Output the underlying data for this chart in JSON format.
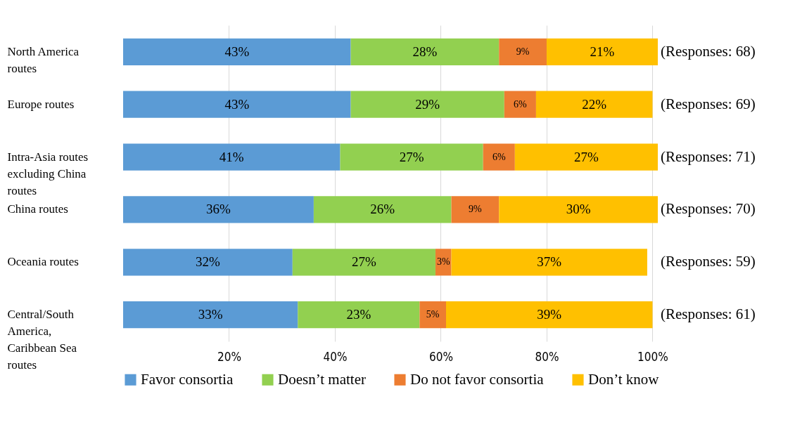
{
  "chart_data": {
    "type": "bar",
    "orientation": "horizontal",
    "stacked": true,
    "grid": "x",
    "legend": "bottom",
    "categories": [
      "North America routes",
      "Europe routes",
      "Intra-Asia routes excluding China routes",
      "China routes",
      "Oceania routes",
      "Central/South America, Caribbean Sea routes"
    ],
    "series": [
      {
        "name": "Favor consortia",
        "color": "#5b9bd5",
        "values": [
          43,
          43,
          41,
          36,
          32,
          33
        ],
        "value_labels": [
          "43%",
          "43%",
          "41%",
          "36%",
          "32%",
          "33%"
        ]
      },
      {
        "name": "Doesn’t matter",
        "color": "#92d050",
        "values": [
          28,
          29,
          27,
          26,
          27,
          23
        ],
        "value_labels": [
          "28%",
          "29%",
          "27%",
          "26%",
          "27%",
          "23%"
        ]
      },
      {
        "name": "Do not favor consortia",
        "color": "#ed7d31",
        "values": [
          9,
          6,
          6,
          9,
          3,
          5
        ],
        "value_labels": [
          "9%",
          "6%",
          "6%",
          "9%",
          "3%",
          "5%"
        ]
      },
      {
        "name": "Don’t know",
        "color": "#ffc000",
        "values": [
          21,
          22,
          27,
          30,
          37,
          39
        ],
        "value_labels": [
          "21%",
          "22%",
          "27%",
          "30%",
          "37%",
          "39%"
        ]
      }
    ],
    "xlim": [
      0,
      101
    ],
    "xticks": [
      {
        "value": 20,
        "label": "20%"
      },
      {
        "value": 40,
        "label": "40%"
      },
      {
        "value": 60,
        "label": "60%"
      },
      {
        "value": 80,
        "label": "80%"
      },
      {
        "value": 100,
        "label": "100%"
      }
    ],
    "annotations": [
      "(Responses: 68)",
      "(Responses: 69)",
      "(Responses: 71)",
      "(Responses: 70)",
      "(Responses: 59)",
      "(Responses: 61)"
    ]
  }
}
